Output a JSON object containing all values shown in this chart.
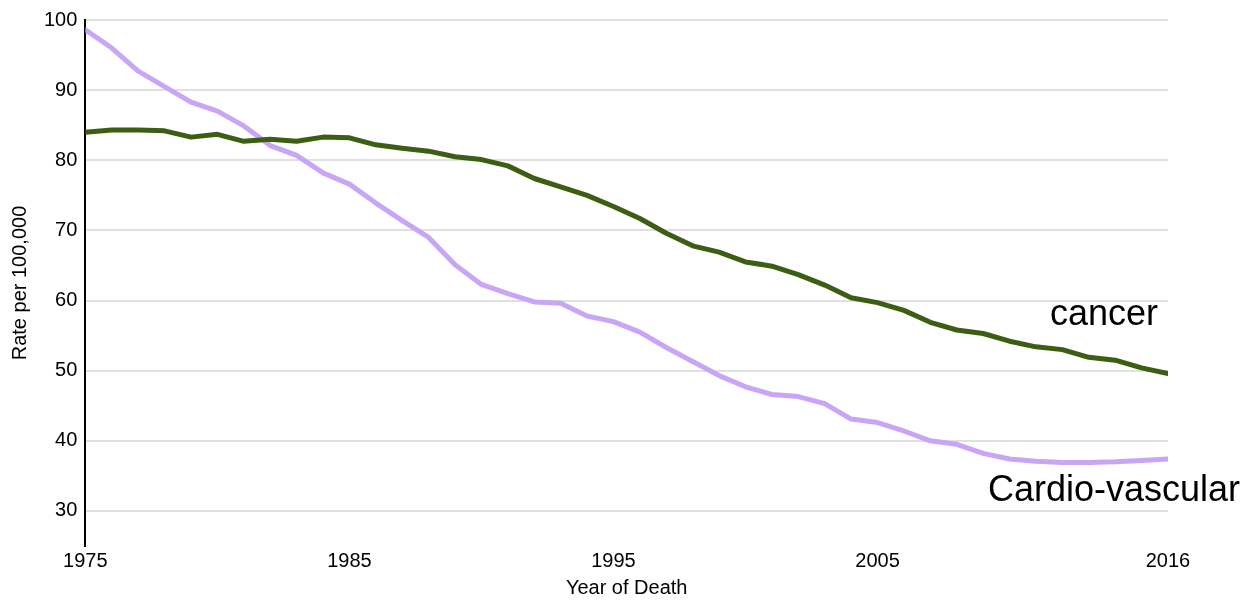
{
  "chart_data": {
    "type": "line",
    "xlabel": "Year of Death",
    "ylabel": "Rate per 100,000",
    "x": [
      1975,
      1976,
      1977,
      1978,
      1979,
      1980,
      1981,
      1982,
      1983,
      1984,
      1985,
      1986,
      1987,
      1988,
      1989,
      1990,
      1991,
      1992,
      1993,
      1994,
      1995,
      1996,
      1997,
      1998,
      1999,
      2000,
      2001,
      2002,
      2003,
      2004,
      2005,
      2006,
      2007,
      2008,
      2009,
      2010,
      2011,
      2012,
      2013,
      2014,
      2015,
      2016
    ],
    "series": [
      {
        "name": "cancer",
        "color": "#3b5e12",
        "values": [
          84.0,
          84.3,
          84.3,
          84.2,
          83.3,
          83.7,
          82.7,
          83.0,
          82.7,
          83.3,
          83.2,
          82.2,
          81.7,
          81.3,
          80.5,
          80.1,
          79.2,
          77.4,
          76.2,
          75.0,
          73.4,
          71.7,
          69.6,
          67.8,
          66.9,
          65.5,
          64.9,
          63.7,
          62.2,
          60.4,
          59.7,
          58.6,
          56.9,
          55.8,
          55.3,
          54.2,
          53.4,
          53.0,
          51.9,
          51.5,
          50.4,
          49.6
        ]
      },
      {
        "name": "Cardio-vascular",
        "color": "#c9a6f5",
        "values": [
          98.6,
          96.0,
          92.7,
          90.5,
          88.3,
          87.0,
          84.9,
          82.1,
          80.7,
          78.2,
          76.6,
          73.9,
          71.4,
          69.0,
          65.1,
          62.3,
          61.0,
          59.8,
          59.6,
          57.8,
          57.0,
          55.5,
          53.3,
          51.3,
          49.3,
          47.7,
          46.6,
          46.3,
          45.3,
          43.1,
          42.6,
          41.4,
          40.0,
          39.5,
          38.2,
          37.4,
          37.1,
          36.9,
          36.9,
          37.0,
          37.2,
          37.4
        ]
      }
    ],
    "xlim": [
      1975,
      2016
    ],
    "xticks": [
      1975,
      1985,
      1995,
      2005,
      2016
    ],
    "ylim": [
      25,
      100
    ],
    "yticks": [
      30,
      40,
      50,
      60,
      70,
      80,
      90,
      100
    ],
    "grid": "y",
    "legend": false,
    "marker": "none",
    "line_style": "solid"
  }
}
